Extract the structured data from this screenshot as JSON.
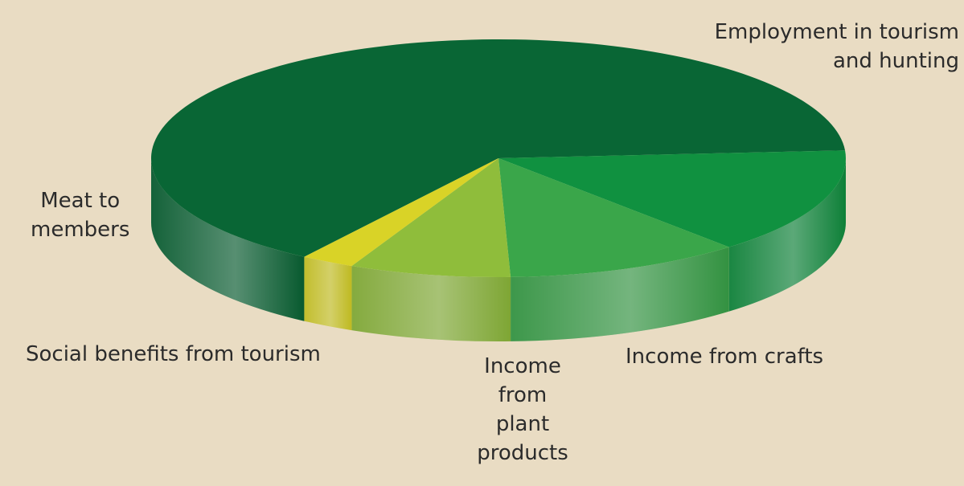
{
  "background": "#e9dcc3",
  "chart_data": {
    "type": "pie",
    "style": "3d",
    "slices": [
      {
        "label_lines": [
          "Employment in tourism",
          "and hunting"
        ],
        "value": 64.5,
        "color": "#096635"
      },
      {
        "label_lines": [
          "Meat to",
          "members"
        ],
        "value": 14.5,
        "color": "#109140"
      },
      {
        "label_lines": [
          "Social benefits from tourism"
        ],
        "value": 11.0,
        "color": "#3aa64a"
      },
      {
        "label_lines": [
          "Income",
          "from",
          "plant",
          "products"
        ],
        "value": 7.5,
        "color": "#8fbd3b"
      },
      {
        "label_lines": [
          "Income from crafts"
        ],
        "value": 2.5,
        "color": "#d9d327"
      }
    ]
  }
}
